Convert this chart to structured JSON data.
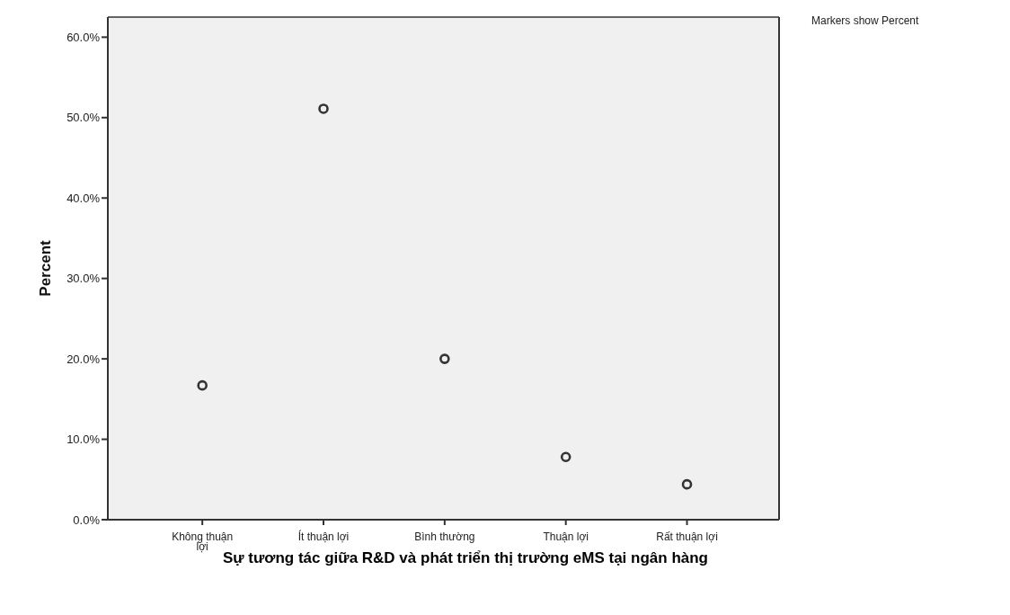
{
  "chart_data": {
    "type": "scatter",
    "xlabel": "Sự tương tác giữa R&D và phát triển thị trường eMS tại ngân hàng",
    "ylabel": "Percent",
    "annotations": [
      "Markers show Percent"
    ],
    "categories": [
      "Không thuận lợi",
      "Ít thuận lợi",
      "Bình thường",
      "Thuận lợi",
      "Rất thuận lợi"
    ],
    "values": [
      16.7,
      51.1,
      20.0,
      7.8,
      4.4
    ],
    "color": "#333333",
    "marker": "circle",
    "ylim": [
      0,
      62.5
    ],
    "yticks": [
      {
        "value": 0,
        "label": "0.0%"
      },
      {
        "value": 10,
        "label": "10.0%"
      },
      {
        "value": 20,
        "label": "20.0%"
      },
      {
        "value": 30,
        "label": "30.0%"
      },
      {
        "value": 40,
        "label": "40.0%"
      },
      {
        "value": 50,
        "label": "50.0%"
      },
      {
        "value": 60,
        "label": "60.0%"
      }
    ],
    "grid": false,
    "legend": false
  }
}
